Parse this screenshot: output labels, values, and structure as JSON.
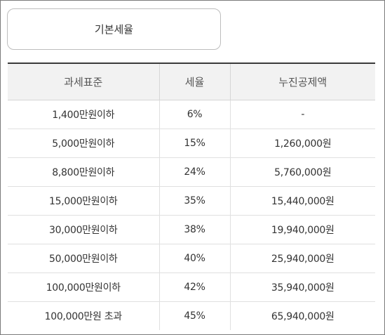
{
  "tab": {
    "label": "기본세율"
  },
  "table": {
    "headers": [
      "과세표준",
      "세율",
      "누진공제액"
    ],
    "rows": [
      [
        "1,400만원이하",
        "6%",
        "-"
      ],
      [
        "5,000만원이하",
        "15%",
        "1,260,000원"
      ],
      [
        "8,800만원이하",
        "24%",
        "5,760,000원"
      ],
      [
        "15,000만원이하",
        "35%",
        "15,440,000원"
      ],
      [
        "30,000만원이하",
        "38%",
        "19,940,000원"
      ],
      [
        "50,000만원이하",
        "40%",
        "25,940,000원"
      ],
      [
        "100,000만원이하",
        "42%",
        "35,940,000원"
      ],
      [
        "100,000만원 초과",
        "45%",
        "65,940,000원"
      ]
    ]
  }
}
